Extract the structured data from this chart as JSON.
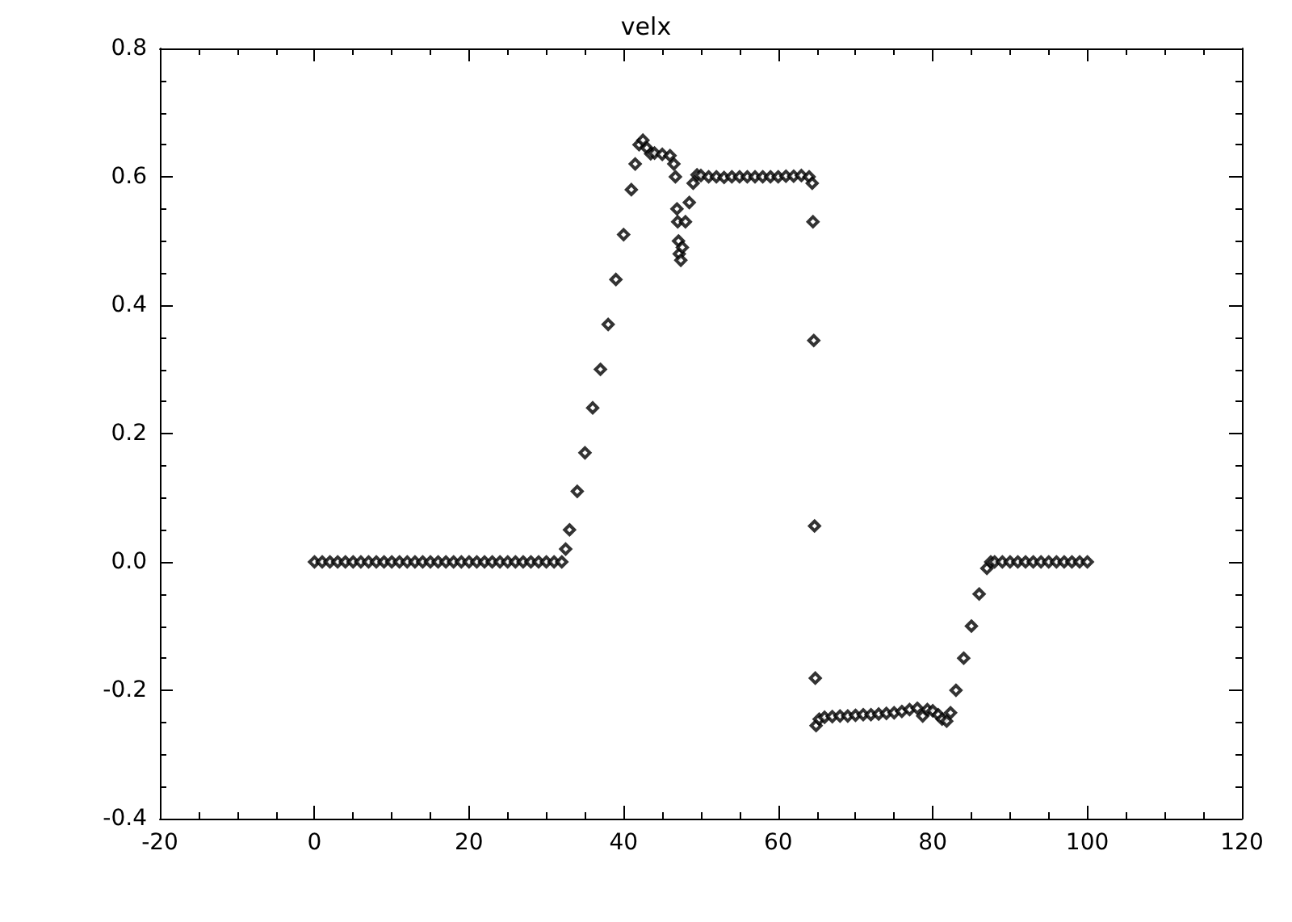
{
  "chart_data": {
    "type": "scatter",
    "title": "velx",
    "marker": "diamond",
    "color": "#000000",
    "grid": false,
    "xlim": [
      -20,
      120
    ],
    "ylim": [
      -0.4,
      0.8
    ],
    "xticks": [
      -20,
      0,
      20,
      40,
      60,
      80,
      100,
      120
    ],
    "yticks": [
      -0.4,
      -0.2,
      {
        "value": 0,
        "label": "0.0"
      },
      0.2,
      0.4,
      0.6,
      0.8
    ],
    "x": [
      0,
      1,
      2,
      3,
      4,
      5,
      6,
      7,
      8,
      9,
      10,
      11,
      12,
      13,
      14,
      15,
      16,
      17,
      18,
      19,
      20,
      21,
      22,
      23,
      24,
      25,
      26,
      27,
      28,
      29,
      30,
      31,
      32,
      32.5,
      33,
      34,
      35,
      36,
      37,
      38,
      39,
      40,
      41,
      41.5,
      42,
      42.5,
      43,
      43.5,
      44,
      45,
      46,
      46.5,
      46.7,
      46.9,
      47,
      47.1,
      47.2,
      47.4,
      47.6,
      48,
      48.5,
      49,
      49.5,
      50,
      51,
      52,
      53,
      54,
      55,
      56,
      57,
      58,
      59,
      60,
      61,
      62,
      63,
      64,
      64.4,
      64.5,
      64.6,
      64.7,
      64.8,
      64.9,
      65.3,
      66,
      67,
      68,
      69,
      70,
      71,
      72,
      73,
      74,
      75,
      76,
      77,
      78,
      78.7,
      79.3,
      80,
      80.7,
      81.2,
      81.8,
      82.3,
      83,
      84,
      85,
      86,
      87,
      87.5,
      88,
      89,
      90,
      91,
      92,
      93,
      94,
      95,
      96,
      97,
      98,
      99,
      100
    ],
    "values": [
      0,
      0,
      0,
      0,
      0,
      0,
      0,
      0,
      0,
      0,
      0,
      0,
      0,
      0,
      0,
      0,
      0,
      0,
      0,
      0,
      0,
      0,
      0,
      0,
      0,
      0,
      0,
      0,
      0,
      0,
      0,
      0,
      0,
      0.02,
      0.05,
      0.11,
      0.17,
      0.24,
      0.3,
      0.37,
      0.44,
      0.51,
      0.58,
      0.62,
      0.65,
      0.657,
      0.645,
      0.636,
      0.637,
      0.635,
      0.633,
      0.62,
      0.6,
      0.55,
      0.53,
      0.5,
      0.48,
      0.47,
      0.49,
      0.53,
      0.56,
      0.59,
      0.603,
      0.602,
      0.6,
      0.6,
      0.599,
      0.6,
      0.6,
      0.6,
      0.6,
      0.6,
      0.6,
      0.6,
      0.601,
      0.601,
      0.602,
      0.6,
      0.59,
      0.53,
      0.345,
      0.056,
      -0.181,
      -0.255,
      -0.245,
      -0.242,
      -0.241,
      -0.24,
      -0.24,
      -0.239,
      -0.238,
      -0.238,
      -0.237,
      -0.236,
      -0.235,
      -0.233,
      -0.23,
      -0.228,
      -0.24,
      -0.23,
      -0.232,
      -0.238,
      -0.245,
      -0.248,
      -0.235,
      -0.2,
      -0.15,
      -0.1,
      -0.05,
      -0.01,
      0,
      0,
      0,
      0,
      0,
      0,
      0,
      0,
      0,
      0,
      0,
      0,
      0,
      0
    ]
  }
}
